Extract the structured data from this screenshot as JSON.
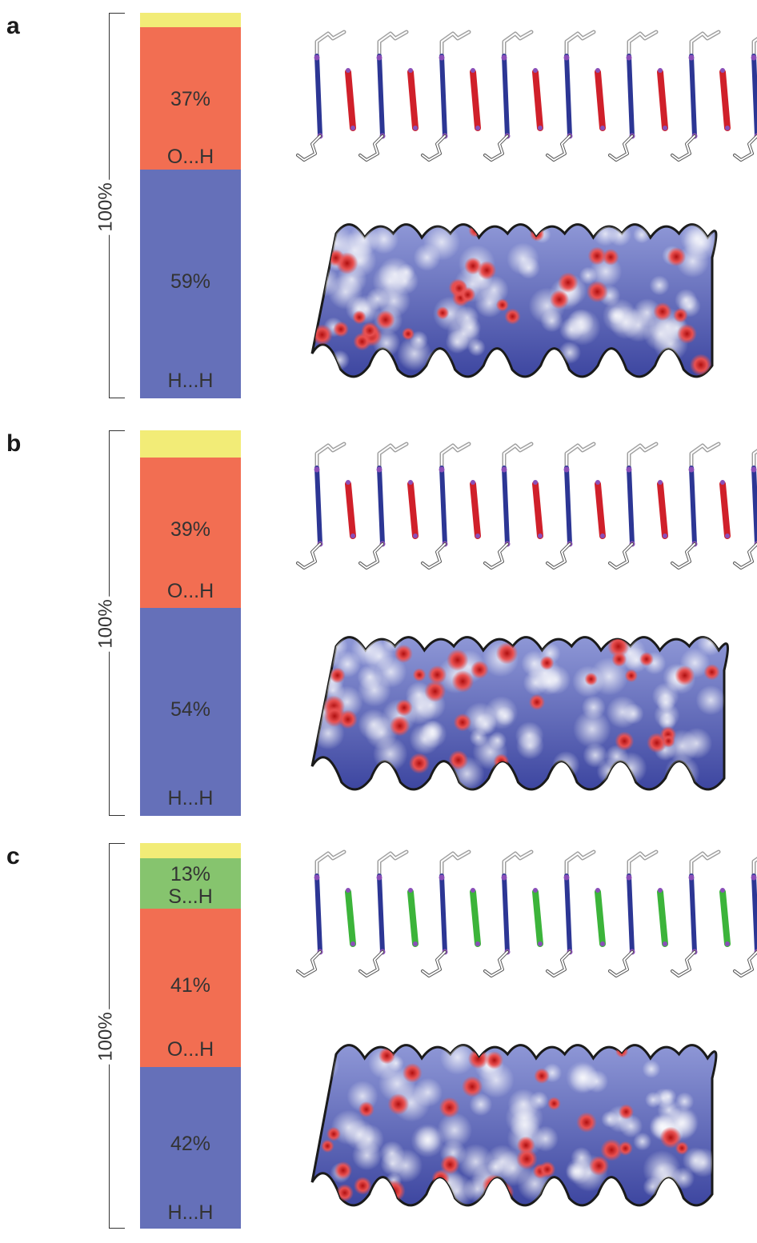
{
  "colors": {
    "yellow": "#f2ec77",
    "orange": "#f26e52",
    "blue": "#6570b9",
    "green": "#86c46e",
    "stick_blue": "#2c3694",
    "stick_red": "#d0202a",
    "stick_green": "#3cb43a",
    "stick_purple": "#8a4fb8",
    "stick_grey": "#a0a0a0"
  },
  "panels": [
    {
      "letter": "a",
      "total_label": "100%",
      "segments": [
        {
          "kind": "yellow",
          "fraction": 0.037,
          "pct": "",
          "label": ""
        },
        {
          "kind": "orange",
          "fraction": 0.37,
          "pct": "37%",
          "label": "O...H"
        },
        {
          "kind": "blue",
          "fraction": 0.593,
          "pct": "59%",
          "label": "H...H"
        }
      ],
      "molecule_color": "stick_red"
    },
    {
      "letter": "b",
      "total_label": "100%",
      "segments": [
        {
          "kind": "yellow",
          "fraction": 0.07,
          "pct": "",
          "label": ""
        },
        {
          "kind": "orange",
          "fraction": 0.39,
          "pct": "39%",
          "label": "O...H"
        },
        {
          "kind": "blue",
          "fraction": 0.54,
          "pct": "54%",
          "label": "H...H"
        }
      ],
      "molecule_color": "stick_red"
    },
    {
      "letter": "c",
      "total_label": "100%",
      "segments": [
        {
          "kind": "yellow",
          "fraction": 0.04,
          "pct": "",
          "label": ""
        },
        {
          "kind": "green",
          "fraction": 0.13,
          "pct": "13%",
          "label": "S...H"
        },
        {
          "kind": "orange",
          "fraction": 0.41,
          "pct": "41%",
          "label": "O...H"
        },
        {
          "kind": "blue",
          "fraction": 0.42,
          "pct": "42%",
          "label": "H...H"
        }
      ],
      "molecule_color": "stick_green"
    }
  ]
}
